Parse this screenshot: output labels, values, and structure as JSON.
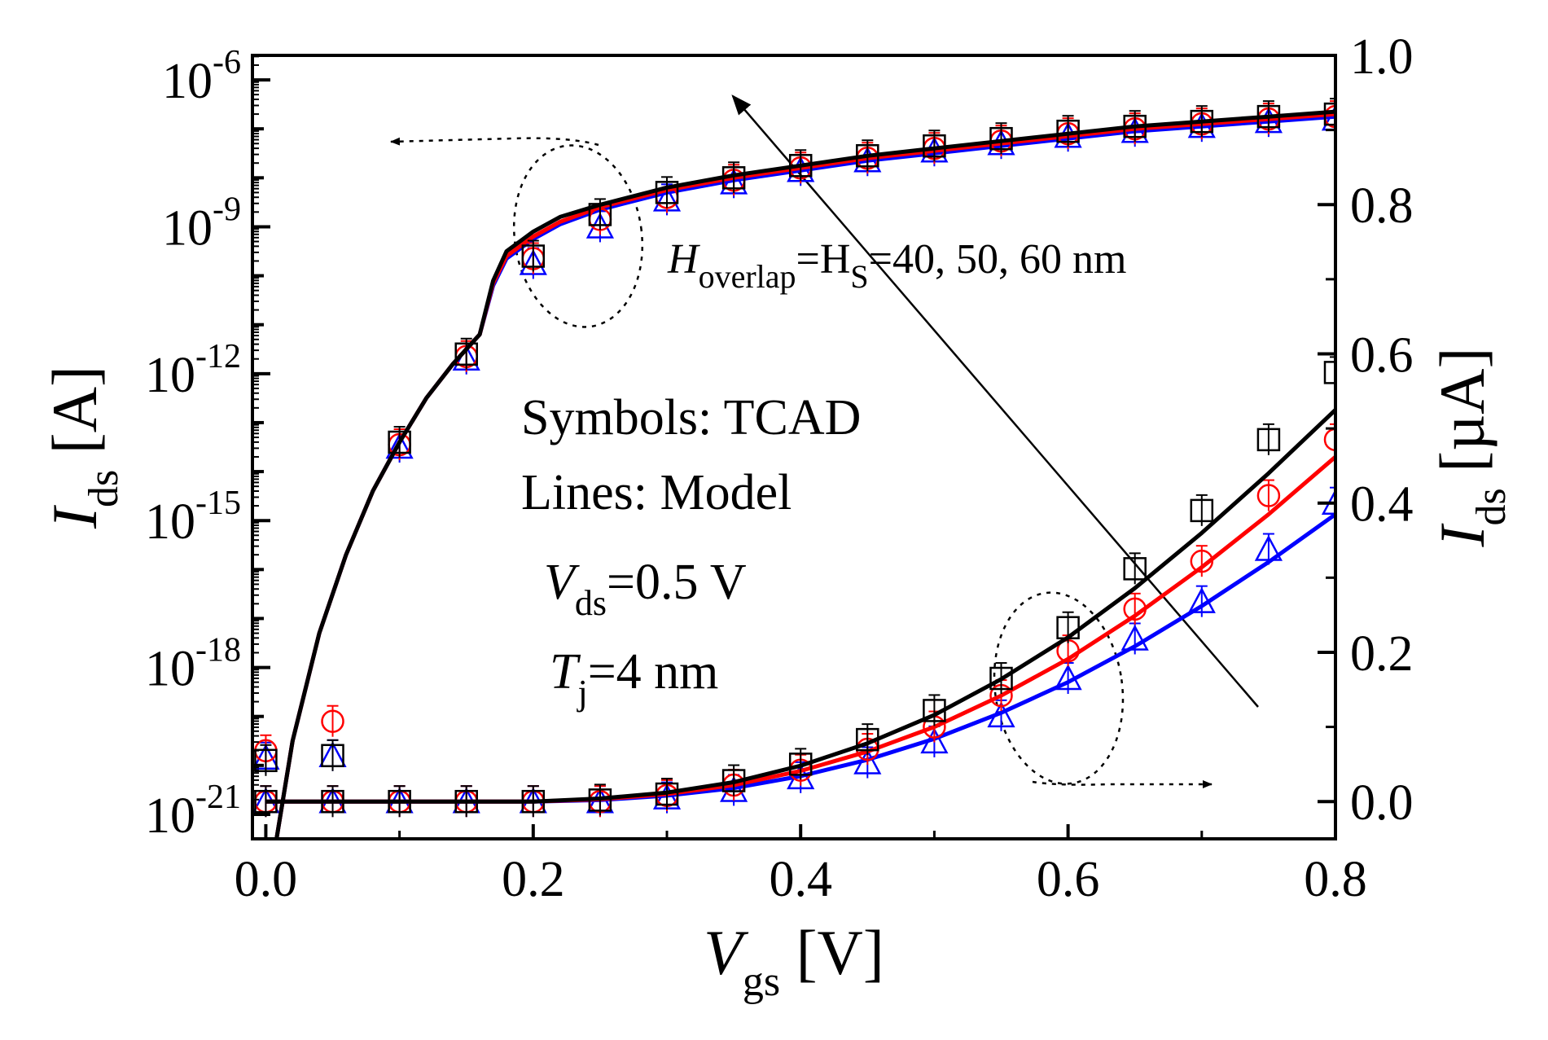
{
  "chart_data": {
    "type": "line",
    "x_axis": {
      "label_main": "V",
      "label_sub": "gs",
      "label_unit": " [V]",
      "range": [
        -0.01,
        0.8
      ],
      "ticks": [
        0.0,
        0.2,
        0.4,
        0.6,
        0.8
      ],
      "tick_labels": [
        "0.0",
        "0.2",
        "0.4",
        "0.6",
        "0.8"
      ]
    },
    "y_left_axis": {
      "label_main": "I",
      "label_sub": "ds",
      "label_unit": " [A]",
      "scale": "log",
      "range_exp": [
        -21.5,
        -5.5
      ],
      "tick_exps": [
        -21,
        -18,
        -15,
        -12,
        -9,
        -6
      ],
      "tick_labels": [
        "-21",
        "-18",
        "-15",
        "-12",
        "-9",
        "-6"
      ],
      "tick_base": "10"
    },
    "y_right_axis": {
      "label_main": "I",
      "label_sub": "ds",
      "label_unit": " [µA]",
      "scale": "linear",
      "range": [
        -0.05,
        1.0
      ],
      "ticks": [
        0.0,
        0.2,
        0.4,
        0.6,
        0.8,
        1.0
      ],
      "tick_labels": [
        "0.0",
        "0.2",
        "0.4",
        "0.6",
        "0.8",
        "1.0"
      ]
    },
    "annotations": {
      "param_main": "H",
      "param_sub1": "overlap",
      "param_eq": "=H",
      "param_sub2": "S",
      "param_values": "=40, 50, 60 nm",
      "symbols_text": "Symbols: TCAD",
      "lines_text": "Lines: Model",
      "vds_main": "V",
      "vds_sub": "ds",
      "vds_value": "=0.5 V",
      "tj_main": "T",
      "tj_sub": "j",
      "tj_value": "=4 nm"
    },
    "series": [
      {
        "name": "40 nm",
        "color": "#000000",
        "marker": "square",
        "log_model_x": [
          0.008,
          0.02,
          0.04,
          0.06,
          0.08,
          0.1,
          0.12,
          0.14,
          0.16,
          0.17,
          0.18,
          0.19,
          0.2,
          0.22,
          0.25,
          0.3,
          0.35,
          0.4,
          0.45,
          0.5,
          0.55,
          0.6,
          0.65,
          0.7,
          0.75,
          0.8
        ],
        "log_model_exp": [
          -21.5,
          -19.5,
          -17.3,
          -15.7,
          -14.4,
          -13.4,
          -12.5,
          -11.8,
          -11.2,
          -10.1,
          -9.5,
          -9.3,
          -9.1,
          -8.8,
          -8.55,
          -8.2,
          -7.95,
          -7.75,
          -7.55,
          -7.4,
          -7.25,
          -7.1,
          -6.95,
          -6.85,
          -6.75,
          -6.65
        ],
        "log_tcad_x": [
          0.0,
          0.05,
          0.1,
          0.15,
          0.2,
          0.25,
          0.3,
          0.35,
          0.4,
          0.45,
          0.5,
          0.55,
          0.6,
          0.65,
          0.7,
          0.75,
          0.8
        ],
        "log_tcad_exp": [
          -19.9,
          -19.8,
          -13.4,
          -11.6,
          -9.6,
          -8.75,
          -8.3,
          -8.0,
          -7.75,
          -7.55,
          -7.35,
          -7.2,
          -7.05,
          -6.95,
          -6.85,
          -6.75,
          -6.7
        ],
        "lin_model_x": [
          0.0,
          0.1,
          0.2,
          0.25,
          0.3,
          0.35,
          0.4,
          0.45,
          0.5,
          0.55,
          0.6,
          0.65,
          0.7,
          0.75,
          0.8
        ],
        "lin_model_y": [
          0.0,
          0.0,
          0.0,
          0.004,
          0.012,
          0.026,
          0.048,
          0.078,
          0.116,
          0.164,
          0.22,
          0.286,
          0.36,
          0.44,
          0.525
        ],
        "lin_tcad_x": [
          0.0,
          0.05,
          0.1,
          0.15,
          0.2,
          0.25,
          0.3,
          0.35,
          0.4,
          0.45,
          0.5,
          0.55,
          0.6,
          0.65,
          0.7,
          0.75,
          0.8
        ],
        "lin_tcad_y": [
          0.0,
          0.0,
          0.0,
          0.0,
          0.0,
          0.002,
          0.01,
          0.028,
          0.05,
          0.083,
          0.122,
          0.165,
          0.233,
          0.312,
          0.39,
          0.485,
          0.575
        ]
      },
      {
        "name": "50 nm",
        "color": "#ff0000",
        "marker": "circle",
        "log_model_x": [
          0.008,
          0.02,
          0.04,
          0.06,
          0.08,
          0.1,
          0.12,
          0.14,
          0.16,
          0.17,
          0.18,
          0.19,
          0.2,
          0.22,
          0.25,
          0.3,
          0.35,
          0.4,
          0.45,
          0.5,
          0.55,
          0.6,
          0.65,
          0.7,
          0.75,
          0.8
        ],
        "log_model_exp": [
          -21.5,
          -19.5,
          -17.3,
          -15.7,
          -14.4,
          -13.4,
          -12.5,
          -11.8,
          -11.2,
          -10.15,
          -9.6,
          -9.4,
          -9.2,
          -8.9,
          -8.6,
          -8.25,
          -8.0,
          -7.8,
          -7.6,
          -7.45,
          -7.3,
          -7.15,
          -7.0,
          -6.9,
          -6.8,
          -6.7
        ],
        "log_tcad_x": [
          0.0,
          0.05,
          0.1,
          0.15,
          0.2,
          0.25,
          0.3,
          0.35,
          0.4,
          0.45,
          0.5,
          0.55,
          0.6,
          0.65,
          0.7,
          0.75,
          0.8
        ],
        "log_tcad_exp": [
          -19.7,
          -19.1,
          -13.45,
          -11.65,
          -9.65,
          -8.85,
          -8.4,
          -8.05,
          -7.8,
          -7.6,
          -7.4,
          -7.25,
          -7.1,
          -7.0,
          -6.9,
          -6.8,
          -6.75
        ],
        "lin_model_x": [
          0.0,
          0.1,
          0.2,
          0.25,
          0.3,
          0.35,
          0.4,
          0.45,
          0.5,
          0.55,
          0.6,
          0.65,
          0.7,
          0.75,
          0.8
        ],
        "lin_model_y": [
          0.0,
          0.0,
          0.0,
          0.003,
          0.01,
          0.022,
          0.041,
          0.067,
          0.1,
          0.142,
          0.191,
          0.249,
          0.314,
          0.385,
          0.462
        ],
        "lin_tcad_x": [
          0.0,
          0.05,
          0.1,
          0.15,
          0.2,
          0.25,
          0.3,
          0.35,
          0.4,
          0.45,
          0.5,
          0.55,
          0.6,
          0.65,
          0.7,
          0.75,
          0.8
        ],
        "lin_tcad_y": [
          0.0,
          0.0,
          0.0,
          0.0,
          0.0,
          0.0,
          0.008,
          0.022,
          0.042,
          0.07,
          0.1,
          0.142,
          0.202,
          0.258,
          0.322,
          0.41,
          0.485
        ]
      },
      {
        "name": "60 nm",
        "color": "#0000ff",
        "marker": "triangle",
        "log_model_x": [
          0.008,
          0.02,
          0.04,
          0.06,
          0.08,
          0.1,
          0.12,
          0.14,
          0.16,
          0.17,
          0.18,
          0.19,
          0.2,
          0.22,
          0.25,
          0.3,
          0.35,
          0.4,
          0.45,
          0.5,
          0.55,
          0.6,
          0.65,
          0.7,
          0.75,
          0.8
        ],
        "log_model_exp": [
          -21.5,
          -19.5,
          -17.3,
          -15.7,
          -14.4,
          -13.4,
          -12.5,
          -11.8,
          -11.2,
          -10.2,
          -9.65,
          -9.45,
          -9.25,
          -8.95,
          -8.65,
          -8.3,
          -8.05,
          -7.85,
          -7.65,
          -7.5,
          -7.35,
          -7.2,
          -7.05,
          -6.95,
          -6.85,
          -6.75
        ],
        "log_tcad_x": [
          0.0,
          0.05,
          0.1,
          0.15,
          0.2,
          0.25,
          0.3,
          0.35,
          0.4,
          0.45,
          0.5,
          0.55,
          0.6,
          0.65,
          0.7,
          0.75,
          0.8
        ],
        "log_tcad_exp": [
          -19.85,
          -19.8,
          -13.5,
          -11.7,
          -9.75,
          -9.0,
          -8.45,
          -8.1,
          -7.85,
          -7.65,
          -7.45,
          -7.3,
          -7.15,
          -7.05,
          -6.95,
          -6.85,
          -6.8
        ],
        "lin_model_x": [
          0.0,
          0.1,
          0.2,
          0.25,
          0.3,
          0.35,
          0.4,
          0.45,
          0.5,
          0.55,
          0.6,
          0.65,
          0.7,
          0.75,
          0.8
        ],
        "lin_model_y": [
          0.0,
          0.0,
          0.0,
          0.002,
          0.008,
          0.018,
          0.034,
          0.056,
          0.084,
          0.119,
          0.16,
          0.208,
          0.262,
          0.321,
          0.385
        ],
        "lin_tcad_x": [
          0.0,
          0.05,
          0.1,
          0.15,
          0.2,
          0.25,
          0.3,
          0.35,
          0.4,
          0.45,
          0.5,
          0.55,
          0.6,
          0.65,
          0.7,
          0.75,
          0.8
        ],
        "lin_tcad_y": [
          0.0,
          0.0,
          0.0,
          0.0,
          0.0,
          0.0,
          0.005,
          0.015,
          0.032,
          0.052,
          0.08,
          0.115,
          0.165,
          0.218,
          0.268,
          0.338,
          0.4
        ]
      }
    ]
  }
}
